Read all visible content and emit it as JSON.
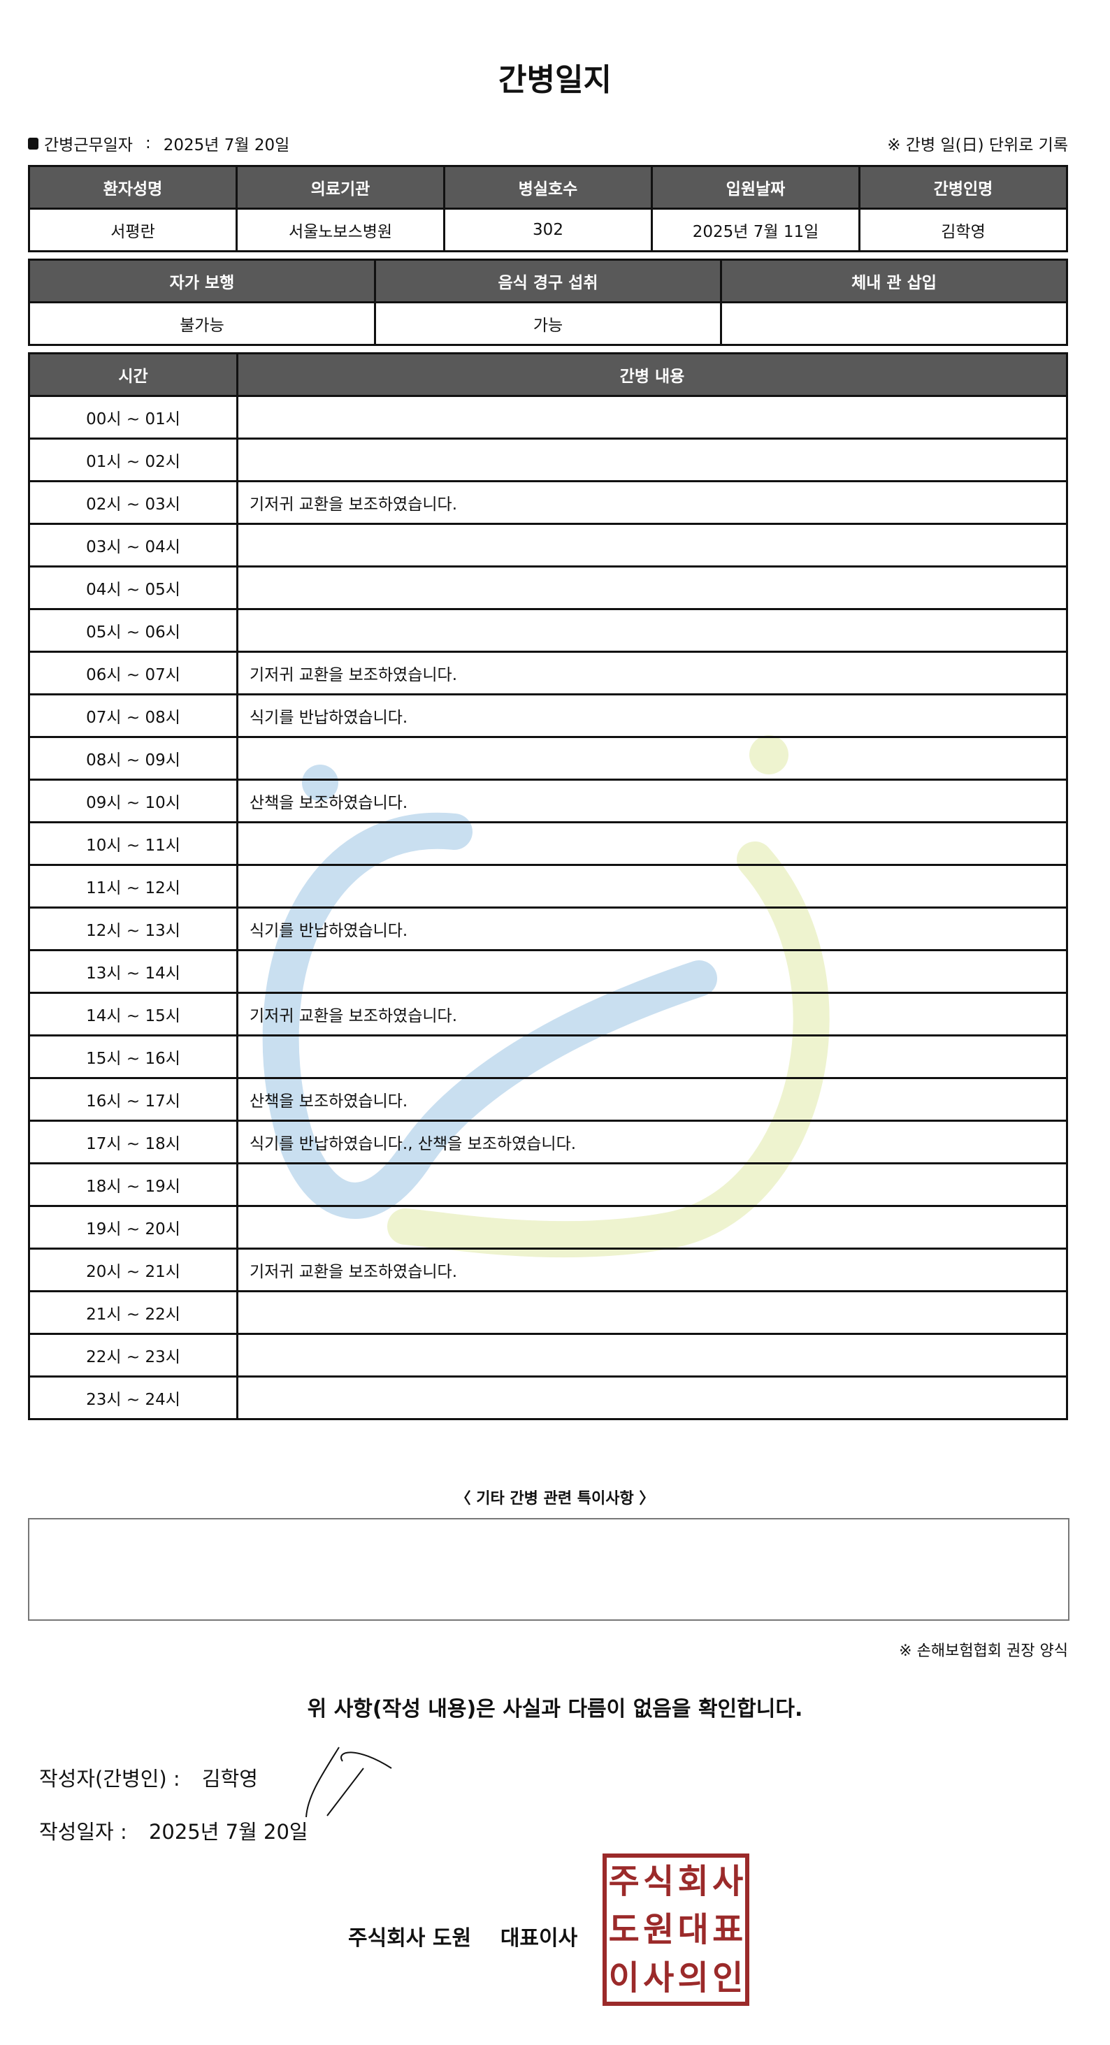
{
  "title": "간병일지",
  "work_date": {
    "label": "간병근무일자",
    "separator": ":",
    "value": "2025년 7월 20일"
  },
  "unit_note": "※ 간병 일(日) 단위로 기록",
  "patient_table": {
    "headers": [
      "환자성명",
      "의료기관",
      "병실호수",
      "입원날짜",
      "간병인명"
    ],
    "values": [
      "서평란",
      "서울노보스병원",
      "302",
      "2025년 7월 11일",
      "김학영"
    ]
  },
  "status_table": {
    "headers": [
      "자가 보행",
      "음식 경구 섭취",
      "체내 관 삽입"
    ],
    "values": [
      "불가능",
      "가능",
      ""
    ]
  },
  "log_table": {
    "headers": [
      "시간",
      "간병 내용"
    ],
    "rows": [
      {
        "time": "00시 ~ 01시",
        "content": ""
      },
      {
        "time": "01시 ~ 02시",
        "content": ""
      },
      {
        "time": "02시 ~ 03시",
        "content": "기저귀 교환을 보조하였습니다."
      },
      {
        "time": "03시 ~ 04시",
        "content": ""
      },
      {
        "time": "04시 ~ 05시",
        "content": ""
      },
      {
        "time": "05시 ~ 06시",
        "content": ""
      },
      {
        "time": "06시 ~ 07시",
        "content": "기저귀 교환을 보조하였습니다."
      },
      {
        "time": "07시 ~ 08시",
        "content": "식기를 반납하였습니다."
      },
      {
        "time": "08시 ~ 09시",
        "content": ""
      },
      {
        "time": "09시 ~ 10시",
        "content": "산책을 보조하였습니다."
      },
      {
        "time": "10시 ~ 11시",
        "content": ""
      },
      {
        "time": "11시 ~ 12시",
        "content": ""
      },
      {
        "time": "12시 ~ 13시",
        "content": "식기를 반납하였습니다."
      },
      {
        "time": "13시 ~ 14시",
        "content": ""
      },
      {
        "time": "14시 ~ 15시",
        "content": "기저귀 교환을 보조하였습니다."
      },
      {
        "time": "15시 ~ 16시",
        "content": ""
      },
      {
        "time": "16시 ~ 17시",
        "content": "산책을 보조하였습니다."
      },
      {
        "time": "17시 ~ 18시",
        "content": "식기를 반납하였습니다., 산책을 보조하였습니다."
      },
      {
        "time": "18시 ~ 19시",
        "content": ""
      },
      {
        "time": "19시 ~ 20시",
        "content": ""
      },
      {
        "time": "20시 ~ 21시",
        "content": "기저귀 교환을 보조하였습니다."
      },
      {
        "time": "21시 ~ 22시",
        "content": ""
      },
      {
        "time": "22시 ~ 23시",
        "content": ""
      },
      {
        "time": "23시 ~ 24시",
        "content": ""
      }
    ]
  },
  "special_notes": {
    "title": "〈 기타 간병 관련 특이사항 〉",
    "content": ""
  },
  "assoc_note": "※ 손해보험협회 권장 양식",
  "confirm_text": "위 사항(작성 내용)은 사실과 다름이 없음을 확인합니다.",
  "writer": {
    "label": "작성자(간병인) :",
    "name": "김학영"
  },
  "write_date": {
    "label": "작성일자 :",
    "value": "2025년 7월 20일"
  },
  "company": "주식회사 도원    대표이사",
  "stamp_text": "주식회사도원대표이사의인",
  "colors": {
    "header_bg": "#595959",
    "stamp": "#9b2a2a",
    "watermark_blue": "#c9dff0",
    "watermark_green": "#eef3cf"
  }
}
